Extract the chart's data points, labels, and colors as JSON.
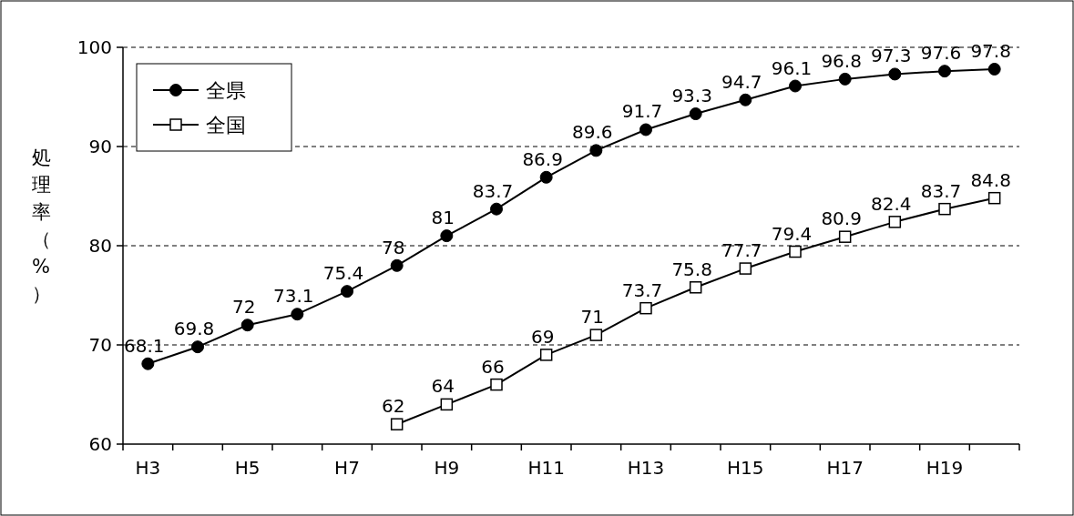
{
  "chart_data": {
    "type": "line",
    "ylabel": "処理率（%）",
    "categories": [
      "H3",
      null,
      "H5",
      null,
      "H7",
      null,
      "H9",
      null,
      "H11",
      null,
      "H13",
      null,
      "H15",
      null,
      "H17",
      null,
      "H19",
      null
    ],
    "series": [
      {
        "name": "全県",
        "color": "#000000",
        "marker": "circle",
        "values": [
          68.1,
          69.8,
          72,
          73.1,
          75.4,
          78,
          81,
          83.7,
          86.9,
          89.6,
          91.7,
          93.3,
          94.7,
          96.1,
          96.8,
          97.3,
          97.6,
          97.8
        ]
      },
      {
        "name": "全国",
        "color": "#000000",
        "marker": "square",
        "values": [
          null,
          null,
          null,
          null,
          null,
          62,
          64,
          66,
          69,
          71,
          73.7,
          75.8,
          77.7,
          79.4,
          80.9,
          82.4,
          83.7,
          84.8
        ]
      }
    ],
    "ylim": [
      60,
      100
    ],
    "yticks": [
      60,
      70,
      80,
      90,
      100
    ],
    "grid": "y",
    "legend": "top left",
    "data_labels": true,
    "line_style": "solid"
  }
}
